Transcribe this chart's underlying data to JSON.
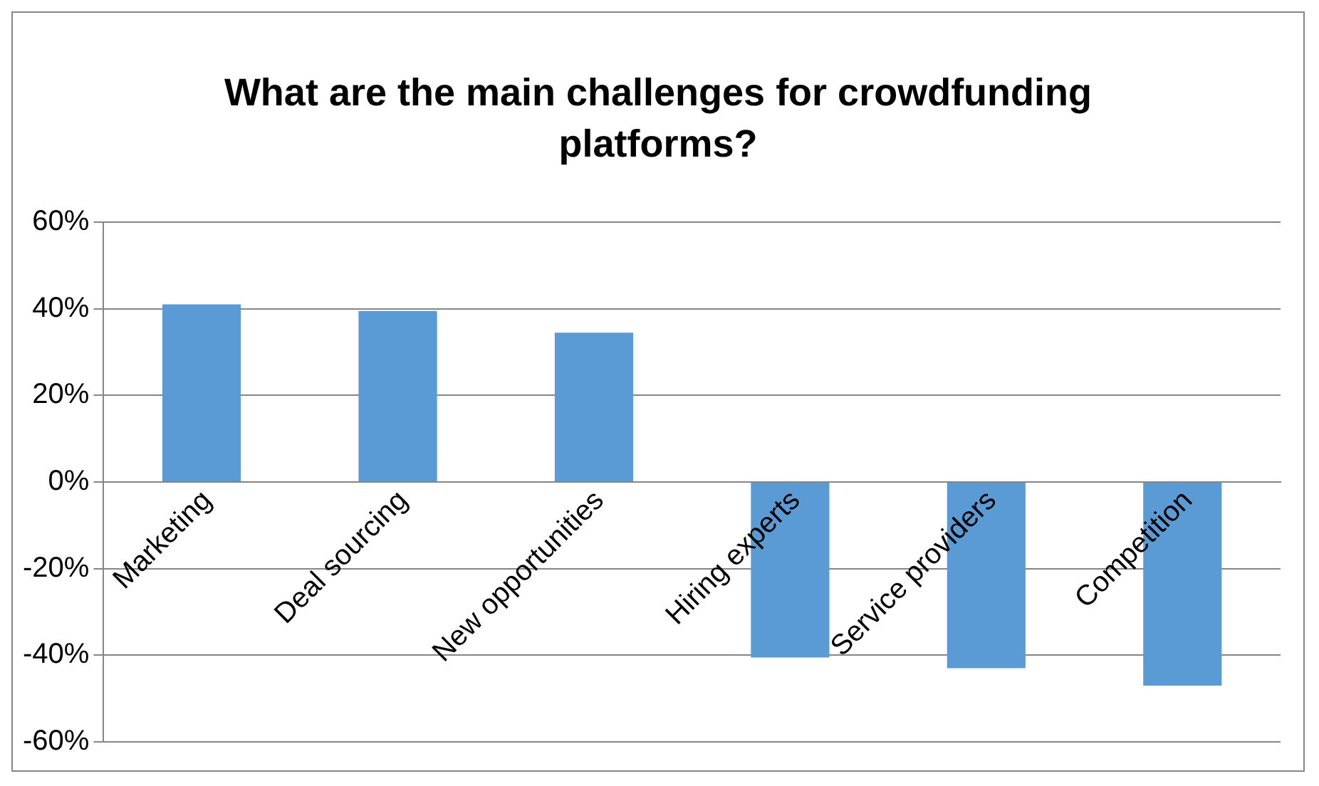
{
  "chart_data": {
    "type": "bar",
    "title": "What are the main challenges for crowdfunding platforms?",
    "categories": [
      "Marketing",
      "Deal sourcing",
      "New opportunities",
      "Hiring experts",
      "Service providers",
      "Competition"
    ],
    "values": [
      41,
      39.5,
      34.5,
      -40.5,
      -43,
      -47
    ],
    "color": "#5b9bd5",
    "ylim": [
      -60,
      60
    ],
    "yticks": [
      {
        "value": -60,
        "label": "-60%"
      },
      {
        "value": -40,
        "label": "-40%"
      },
      {
        "value": -20,
        "label": "-20%"
      },
      {
        "value": 0,
        "label": "0%"
      },
      {
        "value": 20,
        "label": "20%"
      },
      {
        "value": 40,
        "label": "40%"
      },
      {
        "value": 60,
        "label": "60%"
      }
    ],
    "grid": "y"
  }
}
